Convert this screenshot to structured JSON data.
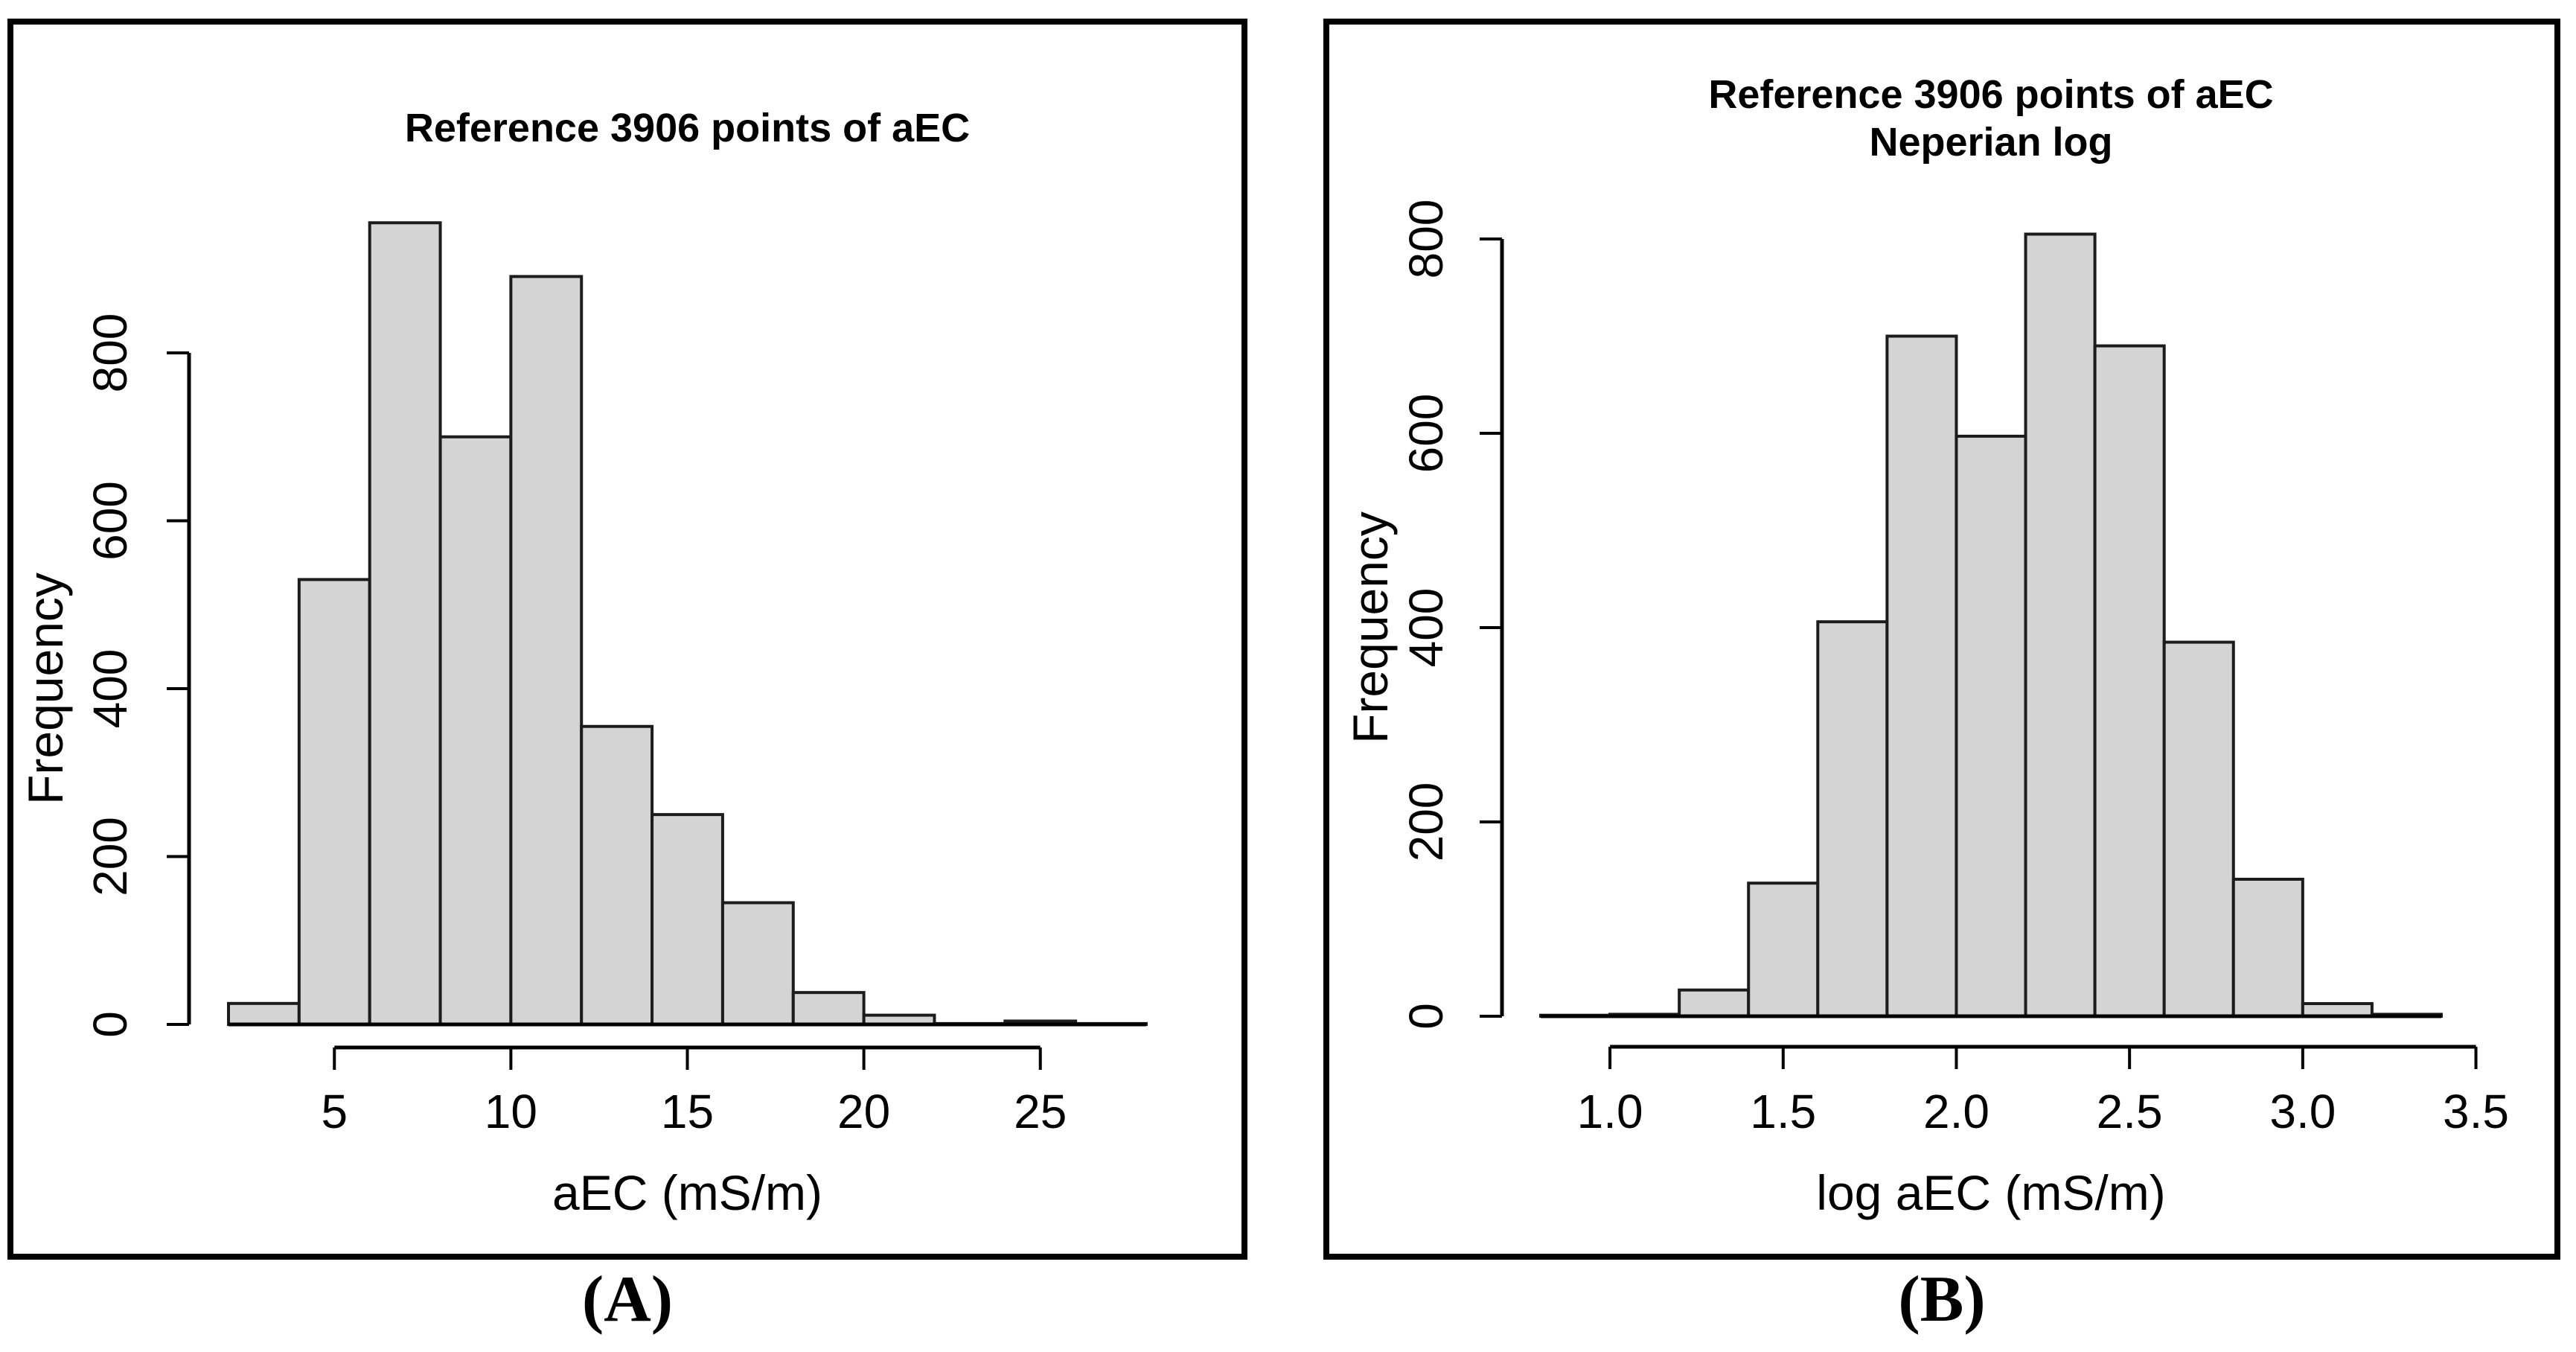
{
  "figure": {
    "captions": [
      "(A)",
      "(B)"
    ],
    "background": "#ffffff",
    "panel_border_color": "#000000"
  },
  "chart_data": [
    {
      "type": "bar",
      "chart_kind": "histogram",
      "title_lines": [
        "Reference 3906 points of aEC"
      ],
      "xlabel": "aEC (mS/m)",
      "ylabel": "Frequency",
      "bin_start": 2,
      "bin_width": 2,
      "bin_edges": [
        2,
        4,
        6,
        8,
        10,
        12,
        14,
        16,
        18,
        20,
        22,
        24,
        26,
        28
      ],
      "values": [
        25,
        530,
        955,
        700,
        891,
        355,
        250,
        145,
        38,
        11,
        1,
        4,
        1
      ],
      "x_ticks": [
        5,
        10,
        15,
        20,
        25
      ],
      "x_tick_labels": [
        "5",
        "10",
        "15",
        "20",
        "25"
      ],
      "y_ticks": [
        0,
        200,
        400,
        600,
        800
      ],
      "y_tick_labels": [
        "0",
        "200",
        "400",
        "600",
        "800"
      ],
      "xlim": [
        2,
        28
      ],
      "ylim": [
        0,
        955
      ],
      "grid": false,
      "legend": null,
      "bar_fill": "#d4d4d4",
      "bar_stroke": "#1c1c1c",
      "axis_color": "#000000"
    },
    {
      "type": "bar",
      "chart_kind": "histogram",
      "title_lines": [
        "Reference 3906 points of aEC",
        "Neperian log"
      ],
      "xlabel": "log aEC (mS/m)",
      "ylabel": "Frequency",
      "bin_start": 0.8,
      "bin_width": 0.2,
      "bin_edges": [
        0.8,
        1.0,
        1.2,
        1.4,
        1.6,
        1.8,
        2.0,
        2.2,
        2.4,
        2.6,
        2.8,
        3.0,
        3.2,
        3.4
      ],
      "values": [
        1,
        2,
        27,
        137,
        406,
        700,
        597,
        805,
        690,
        385,
        141,
        13,
        2
      ],
      "x_ticks": [
        1.0,
        1.5,
        2.0,
        2.5,
        3.0,
        3.5
      ],
      "x_tick_labels": [
        "1.0",
        "1.5",
        "2.0",
        "2.5",
        "3.0",
        "3.5"
      ],
      "y_ticks": [
        0,
        200,
        400,
        600,
        800
      ],
      "y_tick_labels": [
        "0",
        "200",
        "400",
        "600",
        "800"
      ],
      "xlim": [
        0.8,
        3.4
      ],
      "ylim": [
        0,
        805
      ],
      "grid": false,
      "legend": null,
      "bar_fill": "#d4d4d4",
      "bar_stroke": "#1c1c1c",
      "axis_color": "#000000"
    }
  ]
}
